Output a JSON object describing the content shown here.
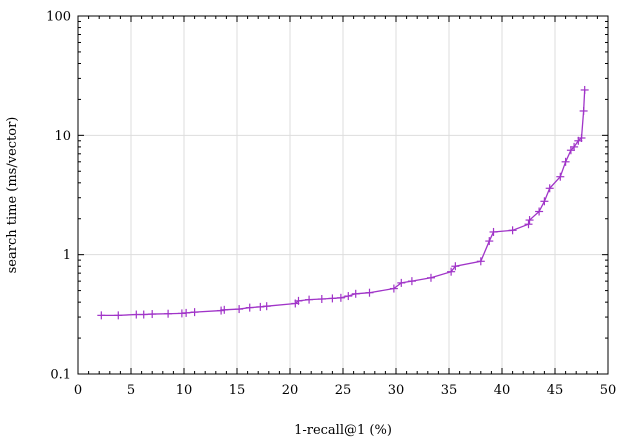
{
  "chart_data": {
    "type": "line",
    "xlabel": "1-recall@1 (%)",
    "ylabel": "search time (ms/vector)",
    "xlim": [
      0,
      50
    ],
    "ylim": [
      0.1,
      100
    ],
    "yscale": "log",
    "grid": true,
    "x_ticks": [
      0,
      5,
      10,
      15,
      20,
      25,
      30,
      35,
      40,
      45,
      50
    ],
    "x_tick_labels": [
      "0",
      "5",
      "10",
      "15",
      "20",
      "25",
      "30",
      "35",
      "40",
      "45",
      "50"
    ],
    "y_ticks": [
      0.1,
      1,
      10,
      100
    ],
    "y_tick_labels": [
      "0.1",
      "1",
      "10",
      "100"
    ],
    "series": [
      {
        "color": "#a034c8",
        "marker": "plus",
        "points": [
          [
            2.2,
            0.31
          ],
          [
            3.8,
            0.31
          ],
          [
            5.5,
            0.315
          ],
          [
            6.2,
            0.315
          ],
          [
            7.0,
            0.318
          ],
          [
            8.5,
            0.32
          ],
          [
            9.8,
            0.322
          ],
          [
            10.2,
            0.325
          ],
          [
            11.0,
            0.33
          ],
          [
            13.5,
            0.34
          ],
          [
            13.8,
            0.345
          ],
          [
            15.2,
            0.35
          ],
          [
            16.2,
            0.36
          ],
          [
            17.2,
            0.365
          ],
          [
            17.8,
            0.37
          ],
          [
            20.5,
            0.39
          ],
          [
            20.8,
            0.41
          ],
          [
            21.8,
            0.42
          ],
          [
            23.0,
            0.425
          ],
          [
            24.0,
            0.43
          ],
          [
            24.8,
            0.435
          ],
          [
            25.5,
            0.45
          ],
          [
            26.2,
            0.47
          ],
          [
            27.5,
            0.48
          ],
          [
            29.8,
            0.52
          ],
          [
            30.5,
            0.58
          ],
          [
            31.5,
            0.6
          ],
          [
            33.3,
            0.64
          ],
          [
            35.2,
            0.72
          ],
          [
            35.6,
            0.8
          ],
          [
            38.0,
            0.88
          ],
          [
            38.8,
            1.3
          ],
          [
            39.2,
            1.55
          ],
          [
            41.0,
            1.6
          ],
          [
            42.5,
            1.8
          ],
          [
            42.6,
            1.95
          ],
          [
            43.5,
            2.3
          ],
          [
            44.0,
            2.8
          ],
          [
            44.5,
            3.6
          ],
          [
            45.5,
            4.5
          ],
          [
            46.0,
            6.0
          ],
          [
            46.5,
            7.5
          ],
          [
            46.8,
            8.0
          ],
          [
            47.2,
            9.0
          ],
          [
            47.5,
            9.5
          ],
          [
            47.7,
            16.0
          ],
          [
            47.8,
            24.0
          ]
        ]
      }
    ]
  }
}
